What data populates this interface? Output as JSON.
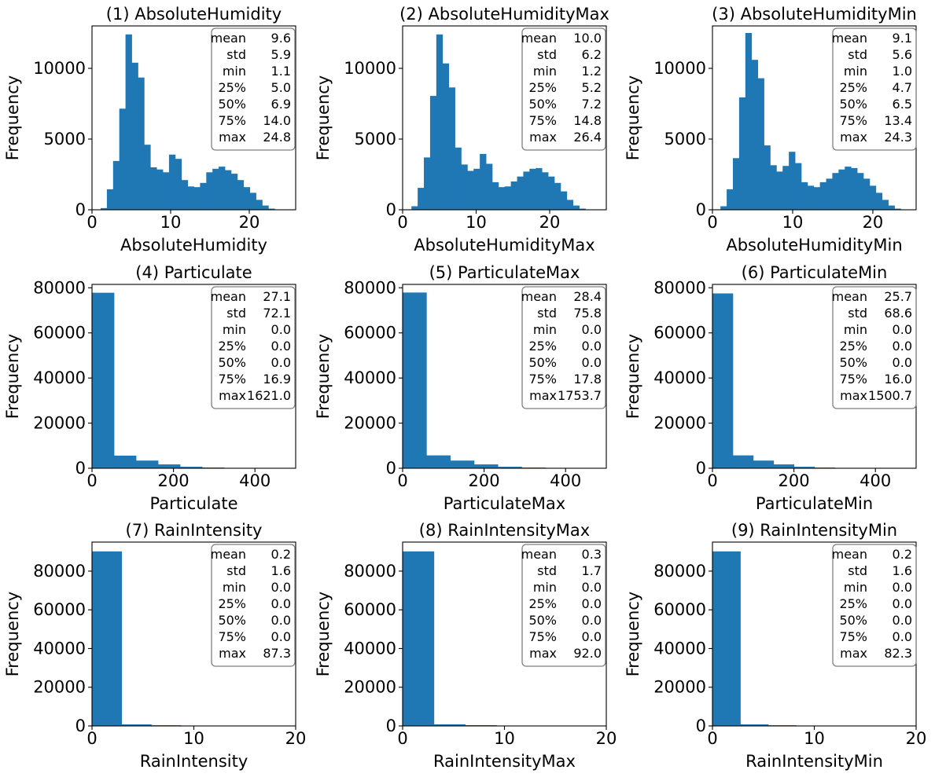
{
  "chart_data": [
    {
      "type": "bar",
      "title": "(1) AbsoluteHumidity",
      "xlabel": "AbsoluteHumidity",
      "ylabel": "Frequency",
      "xlim": [
        0.0,
        25.9
      ],
      "ylim": [
        0,
        13000
      ],
      "xticks": [
        0,
        10,
        20
      ],
      "yticks": [
        0,
        5000,
        10000
      ],
      "bar_color": "#1f77b4",
      "bin_start": 1.1,
      "bin_width": 0.79,
      "values": [
        120,
        1450,
        3450,
        7150,
        12400,
        10400,
        9350,
        4600,
        3000,
        2850,
        2650,
        3900,
        3600,
        2100,
        1650,
        1600,
        1900,
        2650,
        2900,
        3050,
        2800,
        2550,
        2100,
        1600,
        1200,
        700,
        300,
        80
      ],
      "stats": [
        {
          "label": "mean",
          "value": "9.6"
        },
        {
          "label": "std",
          "value": "5.9"
        },
        {
          "label": "min",
          "value": "1.1"
        },
        {
          "label": "25%",
          "value": "5.0"
        },
        {
          "label": "50%",
          "value": "6.9"
        },
        {
          "label": "75%",
          "value": "14.0"
        },
        {
          "label": "max",
          "value": "24.8"
        }
      ]
    },
    {
      "type": "bar",
      "title": "(2) AbsoluteHumidityMax",
      "xlabel": "AbsoluteHumidityMax",
      "ylabel": "Frequency",
      "xlim": [
        0.0,
        27.7
      ],
      "ylim": [
        0,
        13000
      ],
      "xticks": [
        0,
        10,
        20
      ],
      "yticks": [
        0,
        5000,
        10000
      ],
      "bar_color": "#1f77b4",
      "bin_start": 1.2,
      "bin_width": 0.845,
      "values": [
        250,
        1550,
        3700,
        8050,
        12400,
        10350,
        8650,
        4400,
        3200,
        2750,
        2900,
        3950,
        3250,
        1950,
        1600,
        1650,
        2000,
        2350,
        2700,
        2900,
        2950,
        2650,
        2350,
        1900,
        1300,
        700,
        300,
        80
      ],
      "stats": [
        {
          "label": "mean",
          "value": "10.0"
        },
        {
          "label": "std",
          "value": "6.2"
        },
        {
          "label": "min",
          "value": "1.2"
        },
        {
          "label": "25%",
          "value": "5.2"
        },
        {
          "label": "50%",
          "value": "7.2"
        },
        {
          "label": "75%",
          "value": "14.8"
        },
        {
          "label": "max",
          "value": "26.4"
        }
      ]
    },
    {
      "type": "bar",
      "title": "(3) AbsoluteHumidityMin",
      "xlabel": "AbsoluteHumidityMin",
      "ylabel": "Frequency",
      "xlim": [
        0.0,
        25.4
      ],
      "ylim": [
        0,
        13000
      ],
      "xticks": [
        0,
        10,
        20
      ],
      "yticks": [
        0,
        5000,
        10000
      ],
      "bar_color": "#1f77b4",
      "bin_start": 1.0,
      "bin_width": 0.775,
      "values": [
        250,
        1450,
        3650,
        7950,
        12500,
        10600,
        9300,
        4550,
        3150,
        2700,
        3100,
        4100,
        3300,
        1950,
        1700,
        1600,
        1950,
        2200,
        2600,
        2850,
        3050,
        2950,
        2600,
        2200,
        1700,
        1200,
        700,
        300,
        80
      ],
      "stats": [
        {
          "label": "mean",
          "value": "9.1"
        },
        {
          "label": "std",
          "value": "5.6"
        },
        {
          "label": "min",
          "value": "1.0"
        },
        {
          "label": "25%",
          "value": "4.7"
        },
        {
          "label": "50%",
          "value": "6.5"
        },
        {
          "label": "75%",
          "value": "13.4"
        },
        {
          "label": "max",
          "value": "24.3"
        }
      ]
    },
    {
      "type": "bar",
      "title": "(4) Particulate",
      "xlabel": "Particulate",
      "ylabel": "Frequency",
      "xlim": [
        0,
        500
      ],
      "ylim": [
        0,
        81500
      ],
      "xticks": [
        0,
        200,
        400
      ],
      "yticks": [
        0,
        20000,
        40000,
        60000,
        80000
      ],
      "bar_color": "#1f77b4",
      "bin_start": 0,
      "bin_width": 54.04,
      "values": [
        77800,
        5600,
        3400,
        1700,
        650,
        300,
        150,
        80,
        40
      ],
      "stats": [
        {
          "label": "mean",
          "value": "27.1"
        },
        {
          "label": "std",
          "value": "72.1"
        },
        {
          "label": "min",
          "value": "0.0"
        },
        {
          "label": "25%",
          "value": "0.0"
        },
        {
          "label": "50%",
          "value": "0.0"
        },
        {
          "label": "75%",
          "value": "16.9"
        },
        {
          "label": "max",
          "value": "1621.0"
        }
      ]
    },
    {
      "type": "bar",
      "title": "(5) ParticulateMax",
      "xlabel": "ParticulateMax",
      "ylabel": "Frequency",
      "xlim": [
        0,
        500
      ],
      "ylim": [
        0,
        81500
      ],
      "xticks": [
        0,
        200,
        400
      ],
      "yticks": [
        0,
        20000,
        40000,
        60000,
        80000
      ],
      "bar_color": "#1f77b4",
      "bin_start": 0,
      "bin_width": 58.46,
      "values": [
        77900,
        5700,
        3400,
        1700,
        650,
        300,
        150,
        80,
        40
      ],
      "stats": [
        {
          "label": "mean",
          "value": "28.4"
        },
        {
          "label": "std",
          "value": "75.8"
        },
        {
          "label": "min",
          "value": "0.0"
        },
        {
          "label": "25%",
          "value": "0.0"
        },
        {
          "label": "50%",
          "value": "0.0"
        },
        {
          "label": "75%",
          "value": "17.8"
        },
        {
          "label": "max",
          "value": "1753.7"
        }
      ]
    },
    {
      "type": "bar",
      "title": "(6) ParticulateMin",
      "xlabel": "ParticulateMin",
      "ylabel": "Frequency",
      "xlim": [
        0,
        500
      ],
      "ylim": [
        0,
        81500
      ],
      "xticks": [
        0,
        200,
        400
      ],
      "yticks": [
        0,
        20000,
        40000,
        60000,
        80000
      ],
      "bar_color": "#1f77b4",
      "bin_start": 0,
      "bin_width": 50.02,
      "values": [
        77500,
        5700,
        3400,
        1700,
        650,
        300,
        150,
        80,
        40
      ],
      "stats": [
        {
          "label": "mean",
          "value": "25.7"
        },
        {
          "label": "std",
          "value": "68.6"
        },
        {
          "label": "min",
          "value": "0.0"
        },
        {
          "label": "25%",
          "value": "0.0"
        },
        {
          "label": "50%",
          "value": "0.0"
        },
        {
          "label": "75%",
          "value": "16.0"
        },
        {
          "label": "max",
          "value": "1500.7"
        }
      ]
    },
    {
      "type": "bar",
      "title": "(7) RainIntensity",
      "xlabel": "RainIntensity",
      "ylabel": "Frequency",
      "xlim": [
        0,
        20
      ],
      "ylim": [
        0,
        95000
      ],
      "xticks": [
        0,
        10,
        20
      ],
      "yticks": [
        0,
        20000,
        40000,
        60000,
        80000
      ],
      "bar_color": "#1f77b4",
      "bin_start": 0,
      "bin_width": 2.91,
      "values": [
        90200,
        800,
        350,
        200
      ],
      "stats": [
        {
          "label": "mean",
          "value": "0.2"
        },
        {
          "label": "std",
          "value": "1.6"
        },
        {
          "label": "min",
          "value": "0.0"
        },
        {
          "label": "25%",
          "value": "0.0"
        },
        {
          "label": "50%",
          "value": "0.0"
        },
        {
          "label": "75%",
          "value": "0.0"
        },
        {
          "label": "max",
          "value": "87.3"
        }
      ]
    },
    {
      "type": "bar",
      "title": "(8) RainIntensityMax",
      "xlabel": "RainIntensityMax",
      "ylabel": "Frequency",
      "xlim": [
        0,
        20
      ],
      "ylim": [
        0,
        95000
      ],
      "xticks": [
        0,
        10,
        20
      ],
      "yticks": [
        0,
        20000,
        40000,
        60000,
        80000
      ],
      "bar_color": "#1f77b4",
      "bin_start": 0,
      "bin_width": 3.07,
      "values": [
        90200,
        850,
        380,
        200
      ],
      "stats": [
        {
          "label": "mean",
          "value": "0.3"
        },
        {
          "label": "std",
          "value": "1.7"
        },
        {
          "label": "min",
          "value": "0.0"
        },
        {
          "label": "25%",
          "value": "0.0"
        },
        {
          "label": "50%",
          "value": "0.0"
        },
        {
          "label": "75%",
          "value": "0.0"
        },
        {
          "label": "max",
          "value": "92.0"
        }
      ]
    },
    {
      "type": "bar",
      "title": "(9) RainIntensityMin",
      "xlabel": "RainIntensityMin",
      "ylabel": "Frequency",
      "xlim": [
        0,
        20
      ],
      "ylim": [
        0,
        95000
      ],
      "xticks": [
        0,
        10,
        20
      ],
      "yticks": [
        0,
        20000,
        40000,
        60000,
        80000
      ],
      "bar_color": "#1f77b4",
      "bin_start": 0,
      "bin_width": 2.74,
      "values": [
        90200,
        800,
        350,
        180
      ],
      "stats": [
        {
          "label": "mean",
          "value": "0.2"
        },
        {
          "label": "std",
          "value": "1.6"
        },
        {
          "label": "min",
          "value": "0.0"
        },
        {
          "label": "25%",
          "value": "0.0"
        },
        {
          "label": "50%",
          "value": "0.0"
        },
        {
          "label": "75%",
          "value": "0.0"
        },
        {
          "label": "max",
          "value": "82.3"
        }
      ]
    }
  ]
}
